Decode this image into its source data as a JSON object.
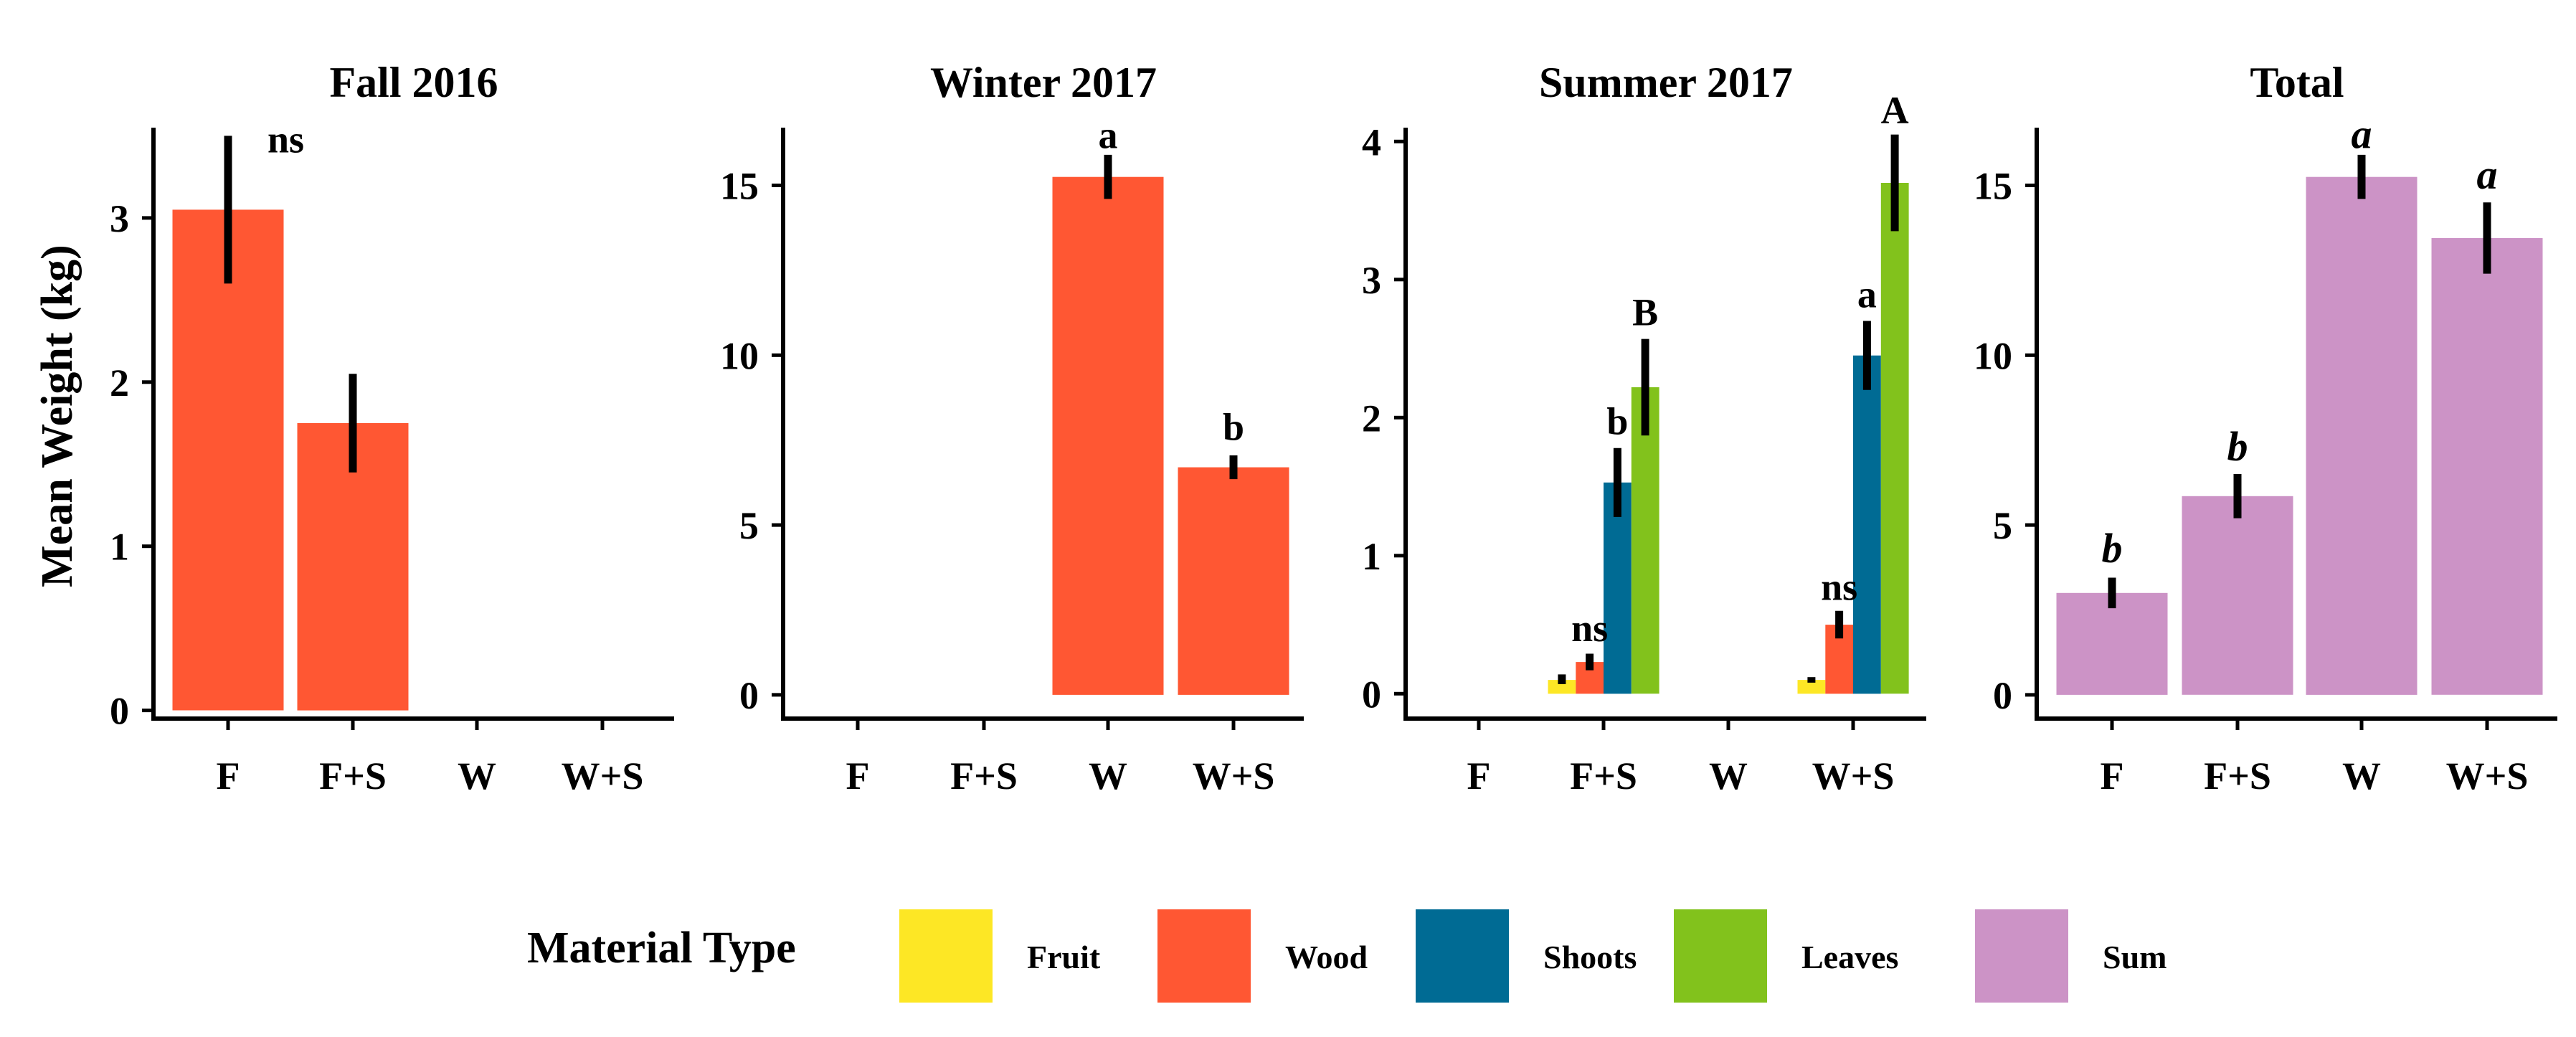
{
  "figure": {
    "ylabel": "Mean Weight (kg)"
  },
  "chart_data": [
    {
      "type": "bar",
      "title": "Fall 2016",
      "xlabel": "",
      "ylabel": "Mean Weight (kg)",
      "categories": [
        "F",
        "F+S",
        "W",
        "W+S"
      ],
      "yticks": [
        "0",
        "1",
        "2",
        "3"
      ],
      "ytick_values": [
        0,
        1,
        2,
        3
      ],
      "ylim": [
        -0.05,
        3.55
      ],
      "series": [
        {
          "name": "Wood",
          "color": "#ff5733",
          "values": [
            3.05,
            1.75,
            null,
            null
          ],
          "err_low": [
            2.6,
            1.45,
            null,
            null
          ],
          "err_high": [
            3.5,
            2.05,
            null,
            null
          ]
        }
      ],
      "annotations": [
        {
          "text": "ns",
          "category": "F",
          "y": 3.4,
          "italic": false
        }
      ]
    },
    {
      "type": "bar",
      "title": "Winter 2017",
      "xlabel": "",
      "ylabel": "",
      "categories": [
        "F",
        "F+S",
        "W",
        "W+S"
      ],
      "yticks": [
        "0",
        "5",
        "10",
        "15"
      ],
      "ytick_values": [
        0,
        5,
        10,
        15
      ],
      "ylim": [
        -0.7,
        16.7
      ],
      "series": [
        {
          "name": "Wood",
          "color": "#ff5733",
          "values": [
            null,
            null,
            15.25,
            6.7
          ],
          "err_low": [
            null,
            null,
            14.6,
            6.35
          ],
          "err_high": [
            null,
            null,
            15.9,
            7.05
          ]
        }
      ],
      "annotations": [
        {
          "text": "a",
          "category": "W",
          "y": 16.1,
          "italic": false
        },
        {
          "text": "b",
          "category": "W+S",
          "y": 7.5,
          "italic": false
        }
      ]
    },
    {
      "type": "bar",
      "title": "Summer 2017",
      "xlabel": "",
      "ylabel": "",
      "categories": [
        "F",
        "F+S",
        "W",
        "W+S"
      ],
      "yticks": [
        "0",
        "1",
        "2",
        "3",
        "4"
      ],
      "ytick_values": [
        0,
        1,
        2,
        3,
        4
      ],
      "ylim": [
        -0.18,
        4.1
      ],
      "series": [
        {
          "name": "Fruit",
          "color": "#fde725",
          "values": [
            null,
            0.1,
            null,
            0.1
          ],
          "err_low": [
            null,
            0.07,
            null,
            0.08
          ],
          "err_high": [
            null,
            0.14,
            null,
            0.12
          ]
        },
        {
          "name": "Wood",
          "color": "#ff5733",
          "values": [
            null,
            0.23,
            null,
            0.5
          ],
          "err_low": [
            null,
            0.17,
            null,
            0.4
          ],
          "err_high": [
            null,
            0.29,
            null,
            0.6
          ]
        },
        {
          "name": "Shoots",
          "color": "#006b94",
          "values": [
            null,
            1.53,
            null,
            2.45
          ],
          "err_low": [
            null,
            1.28,
            null,
            2.2
          ],
          "err_high": [
            null,
            1.78,
            null,
            2.7
          ]
        },
        {
          "name": "Leaves",
          "color": "#82c21c",
          "values": [
            null,
            2.22,
            null,
            3.7
          ],
          "err_low": [
            null,
            1.87,
            null,
            3.35
          ],
          "err_high": [
            null,
            2.57,
            null,
            4.05
          ]
        }
      ],
      "annotations": [
        {
          "text": "ns",
          "category": "F+S",
          "series": "Wood",
          "y": 0.38,
          "italic": false
        },
        {
          "text": "b",
          "category": "F+S",
          "series": "Shoots",
          "y": 1.88,
          "italic": false
        },
        {
          "text": "B",
          "category": "F+S",
          "series": "Leaves",
          "y": 2.67,
          "italic": false
        },
        {
          "text": "ns",
          "category": "W+S",
          "series": "Wood",
          "y": 0.68,
          "italic": false
        },
        {
          "text": "a",
          "category": "W+S",
          "series": "Shoots",
          "y": 2.8,
          "italic": false
        },
        {
          "text": "A",
          "category": "W+S",
          "series": "Leaves",
          "y": 4.13,
          "italic": false
        }
      ]
    },
    {
      "type": "bar",
      "title": "Total",
      "xlabel": "",
      "ylabel": "",
      "categories": [
        "F",
        "F+S",
        "W",
        "W+S"
      ],
      "yticks": [
        "0",
        "5",
        "10",
        "15"
      ],
      "ytick_values": [
        0,
        5,
        10,
        15
      ],
      "ylim": [
        -0.7,
        16.7
      ],
      "series": [
        {
          "name": "Sum",
          "color": "#cc93c6",
          "values": [
            3.0,
            5.85,
            15.25,
            13.45
          ],
          "err_low": [
            2.55,
            5.2,
            14.6,
            12.4
          ],
          "err_high": [
            3.45,
            6.5,
            15.9,
            14.5
          ]
        }
      ],
      "annotations": [
        {
          "text": "b",
          "category": "F",
          "y": 3.9,
          "italic": true
        },
        {
          "text": "b",
          "category": "F+S",
          "y": 6.9,
          "italic": true
        },
        {
          "text": "a",
          "category": "W",
          "y": 16.1,
          "italic": true
        },
        {
          "text": "a",
          "category": "W+S",
          "y": 14.9,
          "italic": true
        }
      ]
    }
  ],
  "legend": {
    "title": "Material Type",
    "placement": "bottom",
    "items": [
      {
        "label": "Fruit",
        "color": "#fde725"
      },
      {
        "label": "Wood",
        "color": "#ff5733"
      },
      {
        "label": "Shoots",
        "color": "#006b94"
      },
      {
        "label": "Leaves",
        "color": "#82c21c"
      },
      {
        "label": "Sum",
        "color": "#cc93c6"
      }
    ]
  }
}
